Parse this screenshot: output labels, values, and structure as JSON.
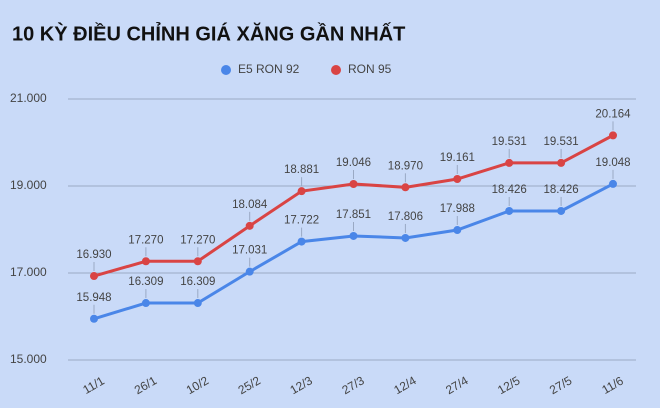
{
  "chart_data": {
    "type": "line",
    "title": "10 KỲ ĐIỀU CHỈNH GIÁ XĂNG GẦN NHẤT",
    "categories": [
      "11/1",
      "26/1",
      "10/2",
      "25/2",
      "12/3",
      "27/3",
      "12/4",
      "27/4",
      "12/5",
      "27/5",
      "11/6"
    ],
    "series": [
      {
        "name": "E5 RON 92",
        "color": "#4a86e8",
        "values": [
          15948,
          16309,
          16309,
          17031,
          17722,
          17851,
          17806,
          17988,
          18426,
          18426,
          19048
        ],
        "value_labels": [
          "15.948",
          "16.309",
          "16.309",
          "17.031",
          "17.722",
          "17.851",
          "17.806",
          "17.988",
          "18.426",
          "18.426",
          "19.048"
        ]
      },
      {
        "name": "RON 95",
        "color": "#d94444",
        "values": [
          16930,
          17270,
          17270,
          18084,
          18881,
          19046,
          18970,
          19161,
          19531,
          19531,
          20164
        ],
        "value_labels": [
          "16.930",
          "17.270",
          "17.270",
          "18.084",
          "18.881",
          "19.046",
          "18.970",
          "19.161",
          "19.531",
          "19.531",
          "20.164"
        ]
      }
    ],
    "ylim": [
      15000,
      21000
    ],
    "yticks": [
      {
        "value": 15000,
        "label": "15.000"
      },
      {
        "value": 17000,
        "label": "17.000"
      },
      {
        "value": 19000,
        "label": "19.000"
      },
      {
        "value": 21000,
        "label": "21.000"
      }
    ],
    "grid": true,
    "legend": "top"
  }
}
